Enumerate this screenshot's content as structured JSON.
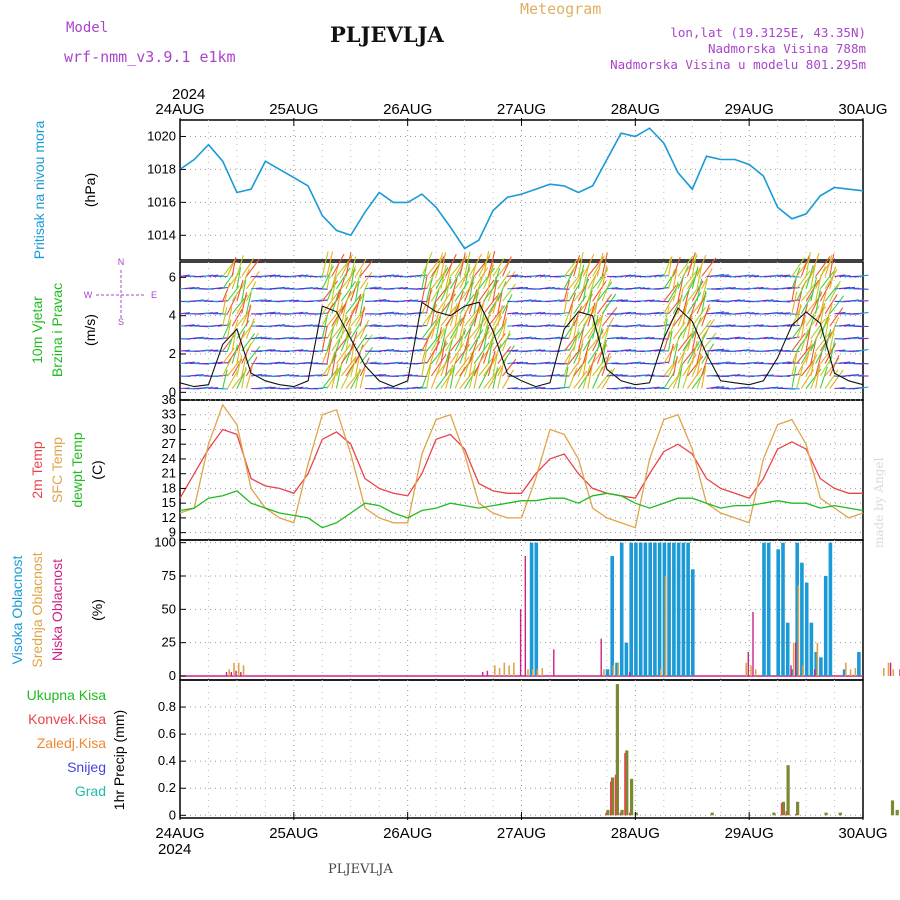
{
  "header": {
    "model_label": "Model",
    "model_name": "wrf-nmm_v3.9.1 e1km",
    "station": "PLJEVLJA",
    "meteogram_label": "Meteogram",
    "lonlat": "lon,lat (19.3125E, 43.35N)",
    "elevation": "Nadmorska Visina 788m",
    "model_elevation": "Nadmorska Visina u modelu 801.295m",
    "footer_station": "PLJEVLJA",
    "credit": "made by Angel"
  },
  "colors": {
    "pressure": "#1a9ad6",
    "temp2m": "#e8434b",
    "sfc_temp": "#e0a44a",
    "dewpoint": "#22bb22",
    "high_cloud": "#1a9ad6",
    "mid_cloud": "#e0a44a",
    "low_cloud": "#cc2288",
    "total_precip": "#7a8a30",
    "convective": "#e8434b",
    "purple_text": "#aa44cc"
  },
  "time_axis": {
    "year": "2024",
    "days": [
      "24AUG",
      "25AUG",
      "26AUG",
      "27AUG",
      "28AUG",
      "29AUG",
      "30AUG"
    ]
  },
  "chart_data": [
    {
      "type": "line",
      "panel": "pressure",
      "ylabel": "Pritisak na nivou mora",
      "unit": "(hPa)",
      "yticks": [
        1014,
        1016,
        1018,
        1020
      ],
      "ylim": [
        1012.5,
        1021
      ],
      "x_units": "hours from 24AUG 00",
      "series": [
        {
          "x": [
            0,
            3,
            6,
            9,
            12,
            15,
            18,
            21,
            24,
            27,
            30,
            33,
            36,
            39,
            42,
            45,
            48,
            51,
            54,
            57,
            60,
            63,
            66,
            69,
            72,
            75,
            78,
            81,
            84,
            87,
            90,
            93,
            96,
            99,
            102,
            105,
            108,
            111,
            114,
            117,
            120,
            123,
            126,
            129,
            132,
            135,
            138,
            141,
            144
          ],
          "values": [
            1018,
            1018.6,
            1019.5,
            1018.5,
            1016.6,
            1016.8,
            1018.5,
            1018,
            1017.5,
            1017,
            1015.2,
            1014.3,
            1014,
            1015.4,
            1016.6,
            1016,
            1016,
            1016.5,
            1015.7,
            1014.5,
            1013.2,
            1013.7,
            1015.5,
            1016.3,
            1016.5,
            1016.8,
            1017.1,
            1017,
            1016.6,
            1017,
            1018.6,
            1020.2,
            1020,
            1020.5,
            1019.6,
            1017.8,
            1016.8,
            1018.8,
            1018.6,
            1018.6,
            1018.3,
            1017.6,
            1015.7,
            1015,
            1015.3,
            1016.4,
            1016.9,
            1016.8,
            1016.7
          ]
        }
      ]
    },
    {
      "type": "line",
      "panel": "wind",
      "ylabel": [
        "10m Vjetar",
        "Brzina i Pravac"
      ],
      "unit": "(m/s)",
      "compass": [
        "N",
        "W",
        "E",
        "S"
      ],
      "yticks": [
        0,
        2,
        4,
        6
      ],
      "ylim": [
        -0.4,
        6.8
      ],
      "series": [
        {
          "name": "speed",
          "x": [
            0,
            3,
            6,
            9,
            12,
            15,
            18,
            21,
            24,
            27,
            30,
            33,
            36,
            39,
            42,
            45,
            48,
            51,
            54,
            57,
            60,
            63,
            66,
            69,
            72,
            75,
            78,
            81,
            84,
            87,
            90,
            93,
            96,
            99,
            102,
            105,
            108,
            111,
            114,
            117,
            120,
            123,
            126,
            129,
            132,
            135,
            138,
            141,
            144
          ],
          "values": [
            0.5,
            0.3,
            0.4,
            2.5,
            3.3,
            1.0,
            0.6,
            0.4,
            0.3,
            0.6,
            4.5,
            4.2,
            2.8,
            1.4,
            0.6,
            0.3,
            0.6,
            4.7,
            4.2,
            4.0,
            4.5,
            4.7,
            3.2,
            1.0,
            0.6,
            0.3,
            0.5,
            3.3,
            4.2,
            4.0,
            1.2,
            0.6,
            0.4,
            0.5,
            2.8,
            4.4,
            3.7,
            2.0,
            0.6,
            0.5,
            0.4,
            0.6,
            1.8,
            3.5,
            4.2,
            3.6,
            1.0,
            0.6,
            0.4
          ]
        }
      ]
    },
    {
      "type": "line",
      "panel": "temperature",
      "ylabel": [
        "2m Temp",
        "SFC Temp",
        "dewpt Temp"
      ],
      "unit": "(C)",
      "yticks": [
        9,
        12,
        15,
        18,
        21,
        24,
        27,
        30,
        33,
        36
      ],
      "ylim": [
        7.5,
        36
      ],
      "series": [
        {
          "name": "2m Temp",
          "x": [
            0,
            3,
            6,
            9,
            12,
            15,
            18,
            21,
            24,
            27,
            30,
            33,
            36,
            39,
            42,
            45,
            48,
            51,
            54,
            57,
            60,
            63,
            66,
            69,
            72,
            75,
            78,
            81,
            84,
            87,
            90,
            93,
            96,
            99,
            102,
            105,
            108,
            111,
            114,
            117,
            120,
            123,
            126,
            129,
            132,
            135,
            138,
            141,
            144
          ],
          "values": [
            16,
            21,
            26,
            30,
            29,
            20,
            18.5,
            18,
            17,
            21,
            28,
            29.5,
            27,
            20,
            18,
            17,
            16.5,
            21,
            28,
            29,
            26,
            19,
            17.5,
            17,
            17,
            21,
            24,
            25,
            21,
            18,
            17,
            16.5,
            16,
            21,
            25.5,
            27,
            25,
            20,
            18,
            17,
            16,
            20,
            26,
            27.5,
            26,
            20,
            18,
            17,
            17
          ]
        },
        {
          "name": "SFC Temp",
          "x": [
            0,
            3,
            6,
            9,
            12,
            15,
            18,
            21,
            24,
            27,
            30,
            33,
            36,
            39,
            42,
            45,
            48,
            51,
            54,
            57,
            60,
            63,
            66,
            69,
            72,
            75,
            78,
            81,
            84,
            87,
            90,
            93,
            96,
            99,
            102,
            105,
            108,
            111,
            114,
            117,
            120,
            123,
            126,
            129,
            132,
            135,
            138,
            141,
            144
          ],
          "values": [
            13,
            14,
            27,
            35,
            31,
            18,
            14,
            12,
            11,
            23,
            33,
            34,
            25,
            14,
            12,
            11,
            11,
            25,
            32,
            33,
            25,
            15,
            13,
            12,
            12,
            20,
            30,
            29,
            24,
            14,
            12,
            11,
            10,
            24,
            32,
            33,
            26,
            15,
            13,
            12,
            11,
            24,
            31,
            32,
            27,
            16,
            14,
            12,
            13
          ]
        },
        {
          "name": "dewpt Temp",
          "x": [
            0,
            3,
            6,
            9,
            12,
            15,
            18,
            21,
            24,
            27,
            30,
            33,
            36,
            39,
            42,
            45,
            48,
            51,
            54,
            57,
            60,
            63,
            66,
            69,
            72,
            75,
            78,
            81,
            84,
            87,
            90,
            93,
            96,
            99,
            102,
            105,
            108,
            111,
            114,
            117,
            120,
            123,
            126,
            129,
            132,
            135,
            138,
            141,
            144
          ],
          "values": [
            13.5,
            14,
            16,
            16.5,
            17.5,
            15,
            14,
            13,
            12.5,
            12,
            10,
            11,
            13,
            15,
            14.5,
            13,
            12,
            13.5,
            14,
            15,
            14.5,
            14,
            14.5,
            15,
            15.5,
            15.5,
            16,
            16,
            15,
            16.5,
            17,
            16.5,
            15,
            14,
            15,
            16,
            16,
            15,
            14,
            14.5,
            14.5,
            15,
            15.5,
            15,
            15,
            14,
            14.5,
            14,
            13.5
          ]
        }
      ]
    },
    {
      "type": "bar",
      "panel": "clouds",
      "ylabel": [
        "Visoka Oblacnost",
        "Srednja Oblacnost",
        "Niska Oblacnost"
      ],
      "unit": "(%)",
      "yticks": [
        0,
        25,
        50,
        75,
        100
      ],
      "ylim": [
        -3,
        102
      ],
      "series": [
        {
          "name": "high",
          "x": [
            74,
            75,
            90,
            91,
            92,
            93,
            94,
            95,
            96,
            97,
            98,
            99,
            100,
            101,
            102,
            103,
            104,
            105,
            106,
            107,
            108,
            123,
            124,
            126,
            127,
            128,
            129,
            130,
            131,
            132,
            133,
            134,
            135,
            136,
            137,
            140,
            143
          ],
          "values": [
            100,
            100,
            5,
            90,
            10,
            100,
            25,
            100,
            100,
            100,
            100,
            100,
            100,
            100,
            100,
            100,
            100,
            100,
            100,
            100,
            80,
            100,
            100,
            95,
            100,
            40,
            5,
            100,
            85,
            70,
            40,
            18,
            14,
            75,
            100,
            5,
            18
          ]
        },
        {
          "name": "mid",
          "x": [
            10,
            11,
            12,
            13,
            66,
            67,
            68,
            69,
            70,
            73,
            74,
            75,
            76,
            89,
            91,
            92,
            101,
            102,
            119,
            120,
            121,
            129,
            130,
            131,
            134,
            140,
            141,
            142,
            148,
            149,
            150,
            153,
            154,
            156,
            157,
            162
          ],
          "values": [
            5,
            10,
            10,
            8,
            8,
            6,
            10,
            8,
            10,
            5,
            5,
            5,
            6,
            5,
            8,
            10,
            5,
            75,
            10,
            8,
            5,
            25,
            68,
            8,
            25,
            10,
            5,
            6,
            6,
            10,
            5,
            12,
            20,
            8,
            10,
            3
          ]
        },
        {
          "name": "low",
          "x": [
            10,
            11,
            12,
            13,
            64,
            65,
            72,
            73,
            79,
            89,
            95,
            120,
            121,
            129,
            130,
            134,
            150,
            152,
            153,
            155,
            156,
            157
          ],
          "values": [
            3,
            3,
            4,
            3,
            3,
            4,
            50,
            90,
            20,
            28,
            3,
            18,
            48,
            8,
            25,
            5,
            10,
            5,
            14,
            14,
            70,
            55
          ]
        }
      ]
    },
    {
      "type": "bar",
      "panel": "precipitation",
      "ylabel": "1hr Precip",
      "unit": "(mm)",
      "legend": [
        "Ukupna Kisa",
        "Konvek.Kisa",
        "Zaledj.Kisa",
        "Snijeg",
        "Grad"
      ],
      "yticks": [
        0,
        0.2,
        0.4,
        0.6,
        0.8
      ],
      "ylim": [
        -0.02,
        1.0
      ],
      "series": [
        {
          "name": "Ukupna Kisa",
          "x": [
            90,
            91,
            92,
            93,
            94,
            95,
            96,
            112,
            125,
            127,
            128,
            130,
            136,
            139,
            150,
            151,
            157
          ],
          "values": [
            0.04,
            0.28,
            0.97,
            0.04,
            0.48,
            0.27,
            0.02,
            0.02,
            0.02,
            0.1,
            0.37,
            0.1,
            0.02,
            0.02,
            0.11,
            0.04,
            0.11
          ]
        },
        {
          "name": "Konvek.Kisa",
          "x": [
            90,
            91,
            92,
            93,
            94,
            95,
            127,
            128,
            130
          ],
          "values": [
            0.02,
            0.25,
            0.3,
            0.02,
            0.46,
            0.02,
            0.09,
            0.03,
            0.01
          ]
        }
      ]
    }
  ]
}
